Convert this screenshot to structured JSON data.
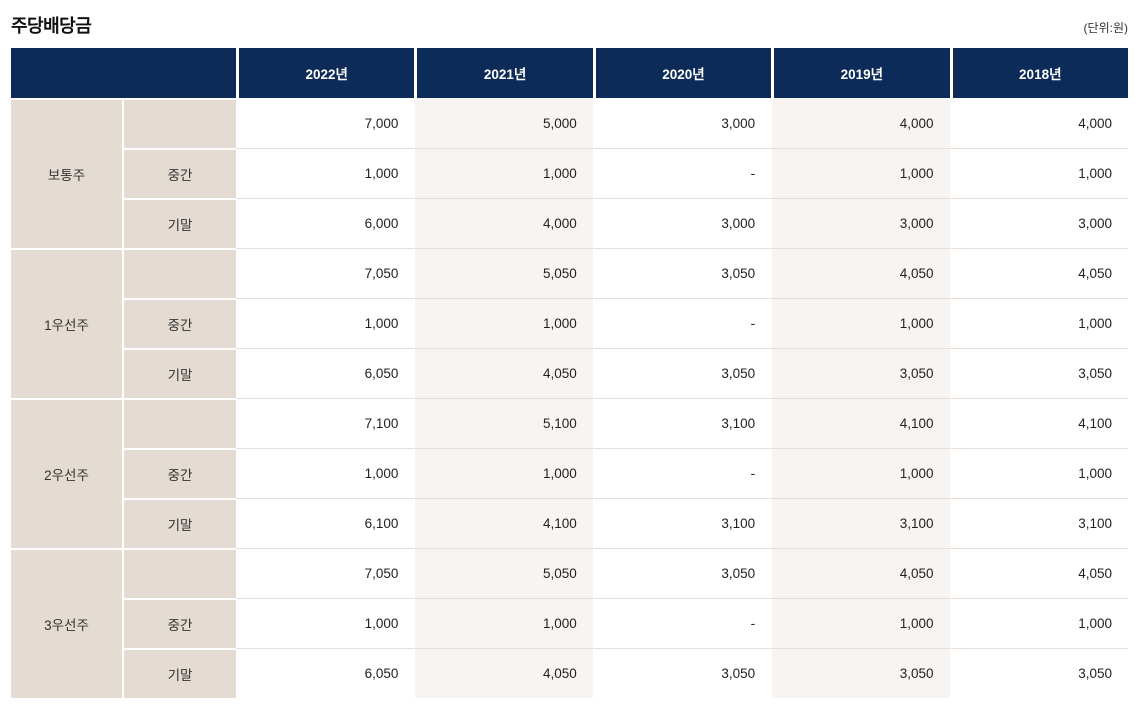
{
  "chart_data": {
    "type": "table",
    "title": "주당배당금",
    "unit_label": "(단위:원)",
    "columns": [
      "2022년",
      "2021년",
      "2020년",
      "2019년",
      "2018년"
    ],
    "groups": [
      {
        "name": "보통주",
        "rows": [
          {
            "label": "",
            "values": [
              "7,000",
              "5,000",
              "3,000",
              "4,000",
              "4,000"
            ]
          },
          {
            "label": "중간",
            "values": [
              "1,000",
              "1,000",
              "-",
              "1,000",
              "1,000"
            ]
          },
          {
            "label": "기말",
            "values": [
              "6,000",
              "4,000",
              "3,000",
              "3,000",
              "3,000"
            ]
          }
        ]
      },
      {
        "name": "1우선주",
        "rows": [
          {
            "label": "",
            "values": [
              "7,050",
              "5,050",
              "3,050",
              "4,050",
              "4,050"
            ]
          },
          {
            "label": "중간",
            "values": [
              "1,000",
              "1,000",
              "-",
              "1,000",
              "1,000"
            ]
          },
          {
            "label": "기말",
            "values": [
              "6,050",
              "4,050",
              "3,050",
              "3,050",
              "3,050"
            ]
          }
        ]
      },
      {
        "name": "2우선주",
        "rows": [
          {
            "label": "",
            "values": [
              "7,100",
              "5,100",
              "3,100",
              "4,100",
              "4,100"
            ]
          },
          {
            "label": "중간",
            "values": [
              "1,000",
              "1,000",
              "-",
              "1,000",
              "1,000"
            ]
          },
          {
            "label": "기말",
            "values": [
              "6,100",
              "4,100",
              "3,100",
              "3,100",
              "3,100"
            ]
          }
        ]
      },
      {
        "name": "3우선주",
        "rows": [
          {
            "label": "",
            "values": [
              "7,050",
              "5,050",
              "3,050",
              "4,050",
              "4,050"
            ]
          },
          {
            "label": "중간",
            "values": [
              "1,000",
              "1,000",
              "-",
              "1,000",
              "1,000"
            ]
          },
          {
            "label": "기말",
            "values": [
              "6,050",
              "4,050",
              "3,050",
              "3,050",
              "3,050"
            ]
          }
        ]
      }
    ]
  },
  "colors": {
    "header_bg": "#0c2b59",
    "header_text": "#ffffff",
    "label_bg": "#e4dcd2",
    "stripe_bg": "#f8f4f1",
    "row_line": "#e6ded6"
  }
}
